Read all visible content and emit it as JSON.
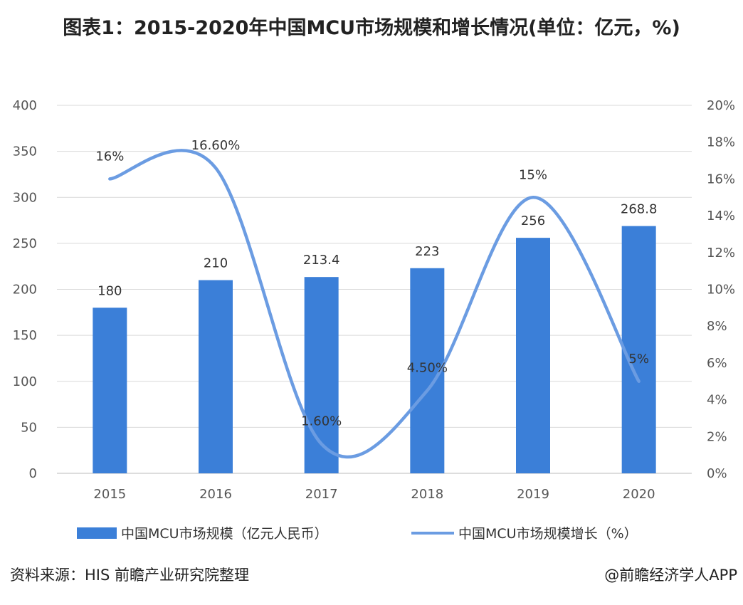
{
  "title": "图表1：2015-2020年中国MCU市场规模和增长情况(单位：亿元，%)",
  "chart_data": {
    "type": "bar+line",
    "title": "图表1：2015-2020年中国MCU市场规模和增长情况(单位：亿元，%)",
    "categories": [
      "2015",
      "2016",
      "2017",
      "2018",
      "2019",
      "2020"
    ],
    "series": [
      {
        "name": "中国MCU市场规模（亿元人民币）",
        "type": "bar",
        "axis": "left",
        "values": [
          180,
          210,
          213.4,
          223,
          256,
          268.8
        ],
        "labels": [
          "180",
          "210",
          "213.4",
          "223",
          "256",
          "268.8"
        ],
        "color": "#3b7fd8"
      },
      {
        "name": "中国MCU市场规模增长（%）",
        "type": "line",
        "axis": "right",
        "smooth": true,
        "values": [
          16,
          16.6,
          1.6,
          4.5,
          15,
          5
        ],
        "labels": [
          "16%",
          "16.60%",
          "1.60%",
          "4.50%",
          "15%",
          "5%"
        ],
        "color": "#6b9ce2"
      }
    ],
    "ylim_left": [
      0,
      400
    ],
    "yticks_left": [
      "0",
      "50",
      "100",
      "150",
      "200",
      "250",
      "300",
      "350",
      "400"
    ],
    "ylim_right": [
      0,
      20
    ],
    "yticks_right": [
      "0%",
      "2%",
      "4%",
      "6%",
      "8%",
      "10%",
      "12%",
      "14%",
      "16%",
      "18%",
      "20%"
    ],
    "grid": true,
    "legend": "bottom"
  },
  "footer": {
    "source": "资料来源：HIS 前瞻产业研究院整理",
    "credit": "@前瞻经济学人APP"
  }
}
